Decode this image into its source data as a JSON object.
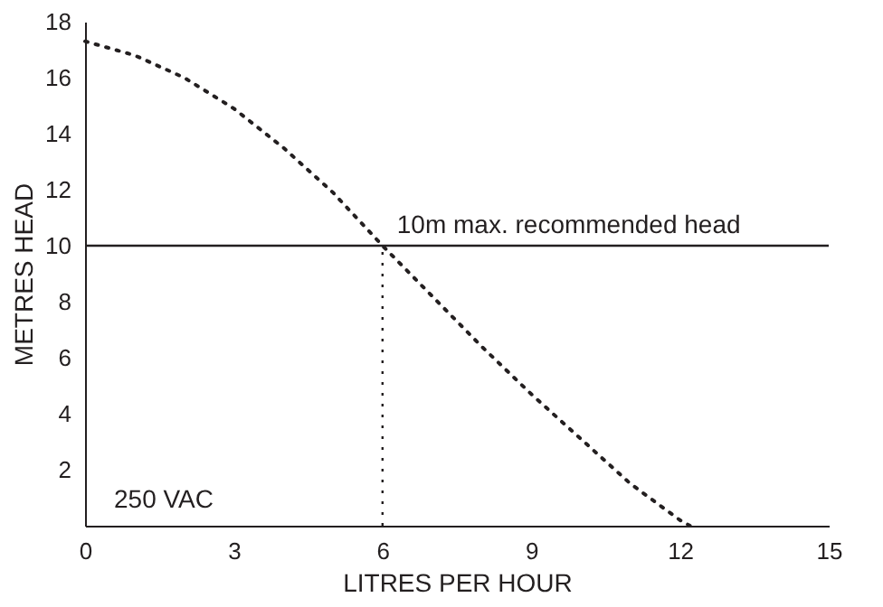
{
  "chart_data": {
    "type": "line",
    "xlabel": "LITRES PER HOUR",
    "ylabel": "METRES HEAD",
    "x": [
      0,
      1,
      2,
      3,
      4,
      5,
      6,
      7,
      8,
      9,
      10,
      11,
      12,
      12.2
    ],
    "series": [
      {
        "color": "#231f20",
        "values": [
          17.3,
          16.8,
          16,
          14.9,
          13.5,
          11.9,
          10,
          8.2,
          6.4,
          4.7,
          3.1,
          1.5,
          0.2,
          0
        ]
      }
    ],
    "xlim": [
      0,
      15
    ],
    "xticks": [
      0,
      3,
      6,
      9,
      12,
      15
    ],
    "ylim": [
      0,
      18
    ],
    "yticks": [
      2,
      4,
      6,
      8,
      10,
      12,
      14,
      16,
      18
    ],
    "marker": "none",
    "line_style": "dotted",
    "grid": false,
    "ref_lines": [
      {
        "axis": "y",
        "value": 10,
        "label": "10m max. recommended head",
        "line_style": "solid",
        "color": "#231f20"
      },
      {
        "axis": "x",
        "value": 6,
        "line_style": "dotted",
        "color": "#231f20"
      }
    ],
    "annotations": [
      "250 VAC"
    ]
  }
}
